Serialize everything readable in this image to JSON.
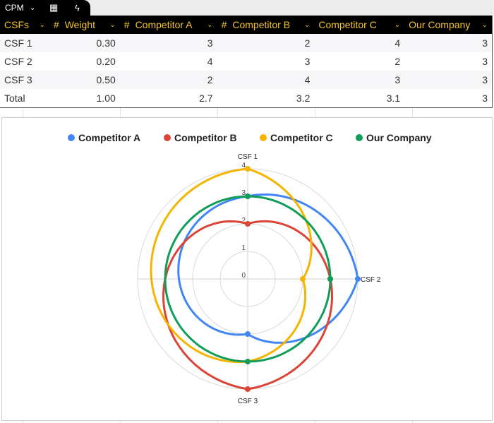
{
  "tab": {
    "name": "CPM",
    "icons": [
      "chevron-down-icon",
      "calculator-icon",
      "lightning-icon"
    ]
  },
  "table": {
    "columns": [
      {
        "label": "CSFs",
        "hash": false
      },
      {
        "label": "Weight",
        "hash": true
      },
      {
        "label": "Competitor A",
        "hash": true
      },
      {
        "label": "Competitor B",
        "hash": true
      },
      {
        "label": "Competitor C",
        "hash": false
      },
      {
        "label": "Our Company",
        "hash": false
      }
    ],
    "rows": [
      [
        "CSF 1",
        "0.30",
        "3",
        "2",
        "4",
        "3"
      ],
      [
        "CSF 2",
        "0.20",
        "4",
        "3",
        "2",
        "3"
      ],
      [
        "CSF 3",
        "0.50",
        "2",
        "4",
        "3",
        "3"
      ],
      [
        "Total",
        "1.00",
        "2.7",
        "3.2",
        "3.1",
        "3"
      ]
    ]
  },
  "chart_data": {
    "type": "radar",
    "categories": [
      "CSF 1",
      "CSF 2",
      "CSF 3"
    ],
    "series": [
      {
        "name": "Competitor A",
        "color": "#4285f4",
        "values": [
          3,
          4,
          2
        ]
      },
      {
        "name": "Competitor B",
        "color": "#db4437",
        "values": [
          2,
          3,
          4
        ]
      },
      {
        "name": "Competitor C",
        "color": "#f4b400",
        "values": [
          4,
          2,
          3
        ]
      },
      {
        "name": "Our Company",
        "color": "#0f9d58",
        "values": [
          3,
          3,
          3
        ]
      }
    ],
    "rlim": [
      0,
      4
    ],
    "ticks": [
      "0",
      "1",
      "2",
      "3",
      "4"
    ],
    "legend": "top"
  }
}
